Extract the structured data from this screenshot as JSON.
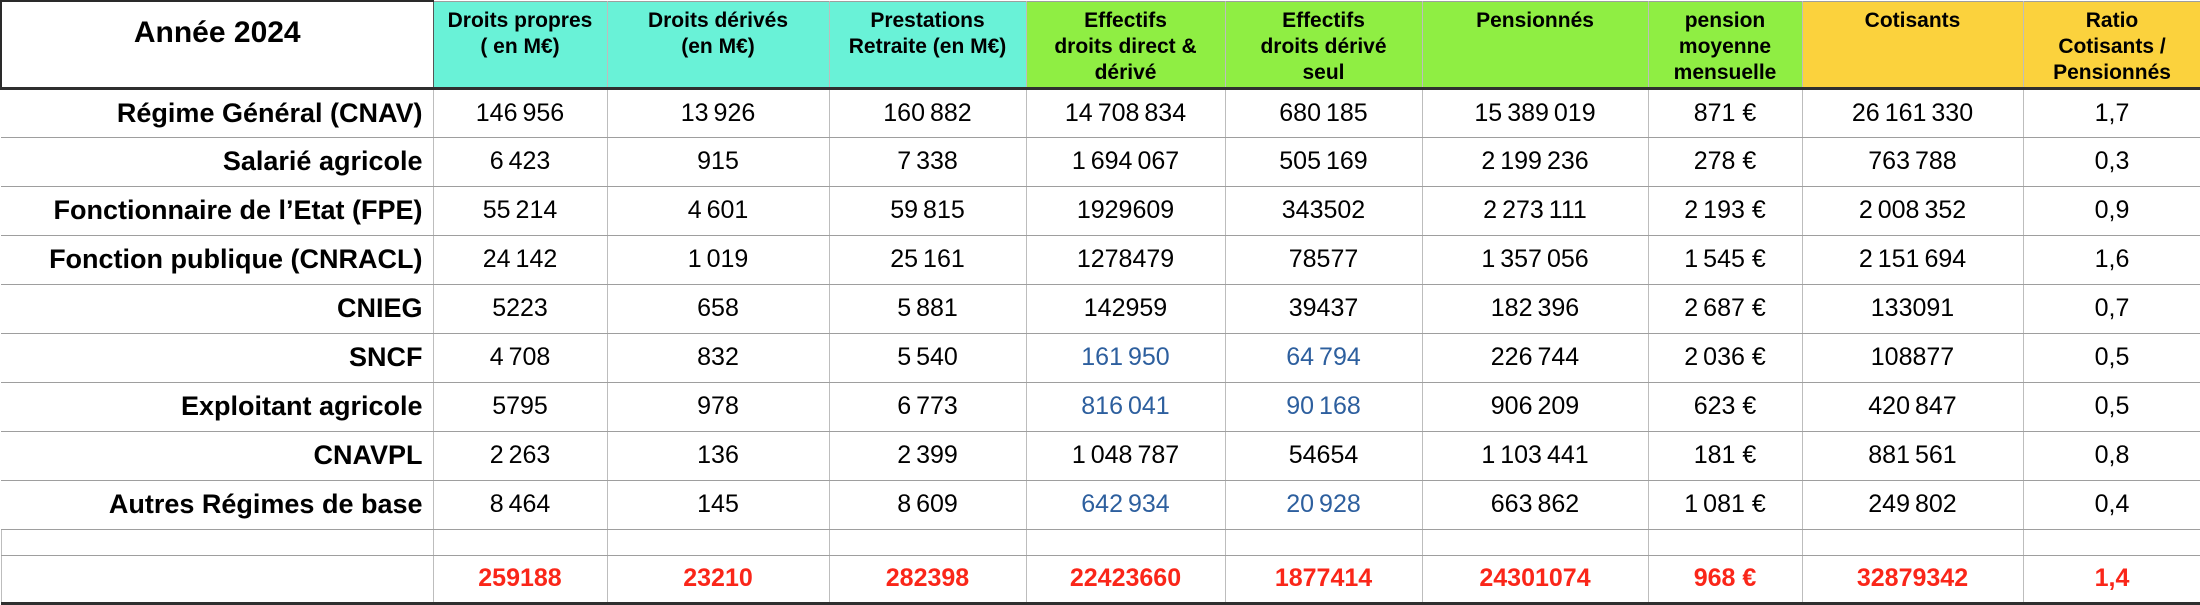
{
  "colors": {
    "header_cyan": "#69f2d7",
    "header_green": "#8fee43",
    "header_yellow": "#fbd23d",
    "value_blue": "#2d5f9e",
    "total_red": "#fa2619"
  },
  "table": {
    "corner_label": "Année 2024",
    "columns": [
      {
        "key": "droits-propres",
        "label": "Droits propres\n( en M€)",
        "color": "cyan"
      },
      {
        "key": "droits-derives",
        "label": "Droits dérivés\n(en M€)",
        "color": "cyan"
      },
      {
        "key": "prestations-retraite",
        "label": "Prestations\nRetraite (en M€)",
        "color": "cyan"
      },
      {
        "key": "effectifs-direct-derive",
        "label": "Effectifs\ndroits direct &\ndérivé",
        "color": "green"
      },
      {
        "key": "effectifs-derive-seul",
        "label": "Effectifs\ndroits dérivé\nseul",
        "color": "green"
      },
      {
        "key": "pensionnes",
        "label": "Pensionnés",
        "color": "green"
      },
      {
        "key": "pension-moyenne",
        "label": "pension\nmoyenne\nmensuelle",
        "color": "green"
      },
      {
        "key": "cotisants",
        "label": "Cotisants",
        "color": "yellow"
      },
      {
        "key": "ratio-cotisants-pensionnes",
        "label": "Ratio\nCotisants /\nPensionnés",
        "color": "yellow"
      }
    ],
    "rows": [
      {
        "key": "regime-general-cnav",
        "label": "Régime Général (CNAV)",
        "cells": [
          "146 956",
          "13 926",
          "160 882",
          "14 708 834",
          "680 185",
          "15 389 019",
          "871 €",
          "26 161 330",
          "1,7"
        ],
        "blue_cells": []
      },
      {
        "key": "salarie-agricole",
        "label": "Salarié agricole",
        "cells": [
          "6 423",
          "915",
          "7 338",
          "1 694 067",
          "505 169",
          "2 199 236",
          "278 €",
          "763 788",
          "0,3"
        ],
        "blue_cells": []
      },
      {
        "key": "fonctionnaire-etat-fpe",
        "label": "Fonctionnaire de l’Etat (FPE)",
        "cells": [
          "55 214",
          "4 601",
          "59 815",
          "1929609",
          "343502",
          "2 273 111",
          "2 193 €",
          "2 008 352",
          "0,9"
        ],
        "blue_cells": []
      },
      {
        "key": "fonction-publique-cnracl",
        "label": "Fonction publique (CNRACL)",
        "cells": [
          "24 142",
          "1 019",
          "25 161",
          "1278479",
          "78577",
          "1 357 056",
          "1 545 €",
          "2 151 694",
          "1,6"
        ],
        "blue_cells": []
      },
      {
        "key": "cnieg",
        "label": "CNIEG",
        "cells": [
          "5223",
          "658",
          "5 881",
          "142959",
          "39437",
          "182 396",
          "2 687 €",
          "133091",
          "0,7"
        ],
        "blue_cells": []
      },
      {
        "key": "sncf",
        "label": "SNCF",
        "cells": [
          "4 708",
          "832",
          "5 540",
          "161 950",
          "64 794",
          "226 744",
          "2 036 €",
          "108877",
          "0,5"
        ],
        "blue_cells": [
          3,
          4
        ]
      },
      {
        "key": "exploitant-agricole",
        "label": "Exploitant agricole",
        "cells": [
          "5795",
          "978",
          "6 773",
          "816 041",
          "90 168",
          "906 209",
          "623 €",
          "420 847",
          "0,5"
        ],
        "blue_cells": [
          3,
          4
        ]
      },
      {
        "key": "cnavpl",
        "label": "CNAVPL",
        "cells": [
          "2 263",
          "136",
          "2 399",
          "1 048 787",
          "54654",
          "1 103 441",
          "181 €",
          "881 561",
          "0,8"
        ],
        "blue_cells": []
      },
      {
        "key": "autres-regimes-base",
        "label": "Autres Régimes de base",
        "cells": [
          "8 464",
          "145",
          "8 609",
          "642 934",
          "20 928",
          "663 862",
          "1 081 €",
          "249 802",
          "0,4"
        ],
        "blue_cells": [
          3,
          4
        ]
      }
    ],
    "totals": [
      "259188",
      "23210",
      "282398",
      "22423660",
      "1877414",
      "24301074",
      "968 €",
      "32879342",
      "1,4"
    ]
  }
}
